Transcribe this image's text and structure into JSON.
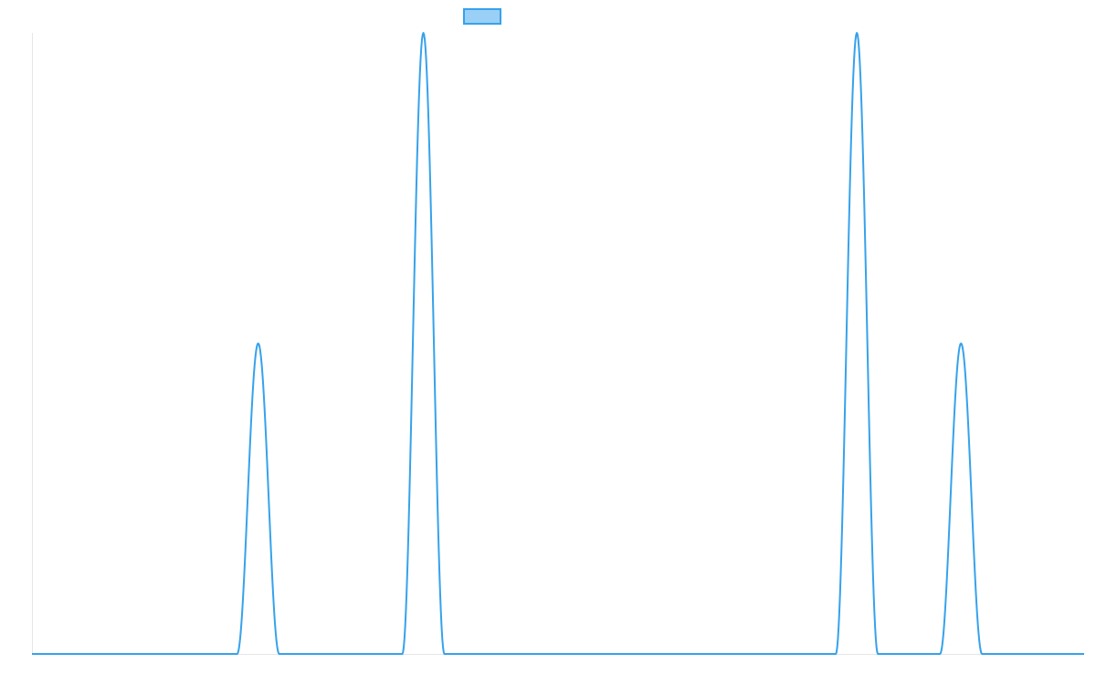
{
  "chart_data": {
    "type": "line",
    "title": "",
    "xlabel": "",
    "ylabel": "",
    "xlim": [
      0,
      100
    ],
    "ylim": [
      0,
      1
    ],
    "grid": false,
    "legend": "top-center",
    "baseline": 0,
    "series": [
      {
        "name": "",
        "color": "#36A2EB",
        "fill": "#9AD0F5",
        "peaks": [
          {
            "x": 21.5,
            "height": 0.5,
            "half_width": 2.0
          },
          {
            "x": 37.2,
            "height": 1.0,
            "half_width": 2.0
          },
          {
            "x": 78.4,
            "height": 1.0,
            "half_width": 2.0
          },
          {
            "x": 88.3,
            "height": 0.5,
            "half_width": 2.0
          }
        ]
      }
    ]
  }
}
